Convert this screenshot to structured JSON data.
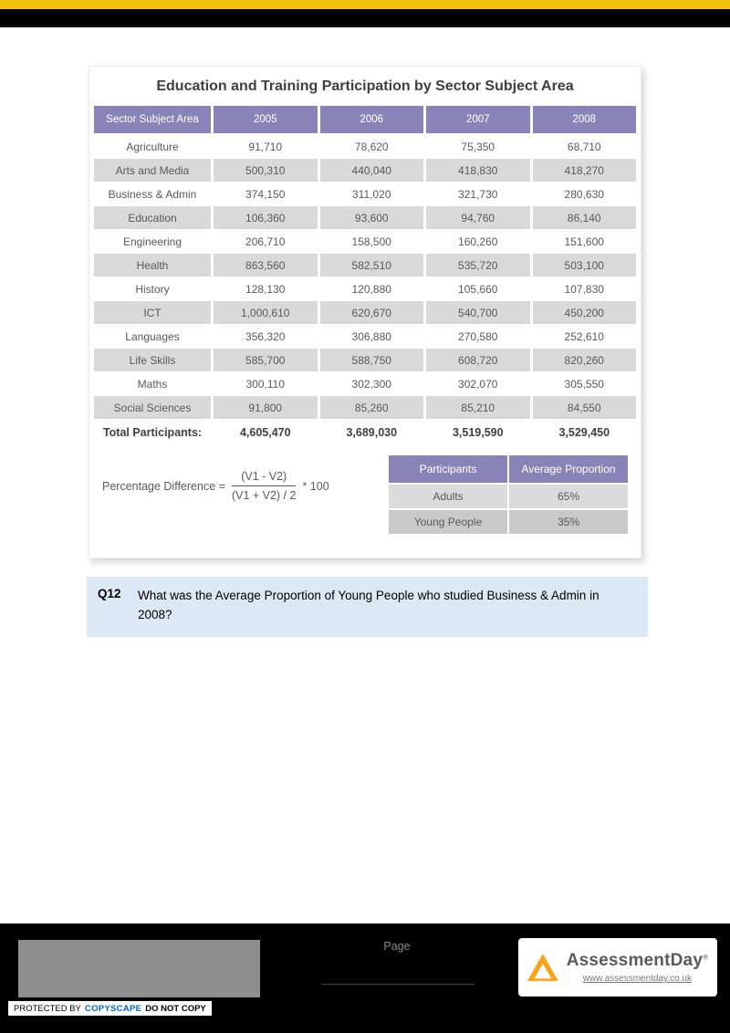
{
  "card": {
    "title": "Education and Training Participation by Sector Subject Area"
  },
  "main_table": {
    "columns": [
      "Sector Subject Area",
      "2005",
      "2006",
      "2007",
      "2008"
    ],
    "rows": [
      {
        "label": "Agriculture",
        "values": [
          "91,710",
          "78,620",
          "75,350",
          "68,710"
        ]
      },
      {
        "label": "Arts and Media",
        "values": [
          "500,310",
          "440,040",
          "418,830",
          "418,270"
        ]
      },
      {
        "label": "Business & Admin",
        "values": [
          "374,150",
          "311,020",
          "321,730",
          "280,630"
        ]
      },
      {
        "label": "Education",
        "values": [
          "106,360",
          "93,600",
          "94,760",
          "86,140"
        ]
      },
      {
        "label": "Engineering",
        "values": [
          "206,710",
          "158,500",
          "160,260",
          "151,600"
        ]
      },
      {
        "label": "Health",
        "values": [
          "863,560",
          "582,510",
          "535,720",
          "503,100"
        ]
      },
      {
        "label": "History",
        "values": [
          "128,130",
          "120,880",
          "105,660",
          "107,830"
        ]
      },
      {
        "label": "ICT",
        "values": [
          "1,000,610",
          "620,670",
          "540,700",
          "450,200"
        ]
      },
      {
        "label": "Languages",
        "values": [
          "356,320",
          "306,880",
          "270,580",
          "252,610"
        ]
      },
      {
        "label": "Life Skills",
        "values": [
          "585,700",
          "588,750",
          "608,720",
          "820,260"
        ]
      },
      {
        "label": "Maths",
        "values": [
          "300,110",
          "302,300",
          "302,070",
          "305,550"
        ]
      },
      {
        "label": "Social Sciences",
        "values": [
          "91,800",
          "85,260",
          "85,210",
          "84,550"
        ]
      }
    ],
    "total": {
      "label": "Total Participants:",
      "values": [
        "4,605,470",
        "3,689,030",
        "3,519,590",
        "3,529,450"
      ]
    }
  },
  "formula": {
    "label": "Percentage Difference =",
    "numerator": "(V1 - V2)",
    "denominator": "(V1 + V2) / 2",
    "suffix": "* 100"
  },
  "proportion_table": {
    "columns": [
      "Participants",
      "Average Proportion"
    ],
    "rows": [
      {
        "label": "Adults",
        "value": "65%"
      },
      {
        "label": "Young People",
        "value": "35%"
      }
    ]
  },
  "question": {
    "number": "Q12",
    "text": "What was the Average Proportion of Young People who studied Business & Admin in 2008?"
  },
  "footer": {
    "page_label": "Page",
    "brand": "AssessmentDay",
    "reg": "®",
    "url": "www.assessmentday.co.uk",
    "copyscape_prefix": "PROTECTED BY",
    "copyscape_brand": "COPYSCAPE",
    "copyscape_suffix": "DO NOT COPY"
  },
  "colors": {
    "accent_yellow": "#F0C010",
    "table_header_purple": "#8A83B8",
    "row_gray": "#D9D9D9",
    "question_bg": "#DCE8F3",
    "logo_orange": "#F7A21A",
    "copyscape_blue": "#0066CC"
  }
}
